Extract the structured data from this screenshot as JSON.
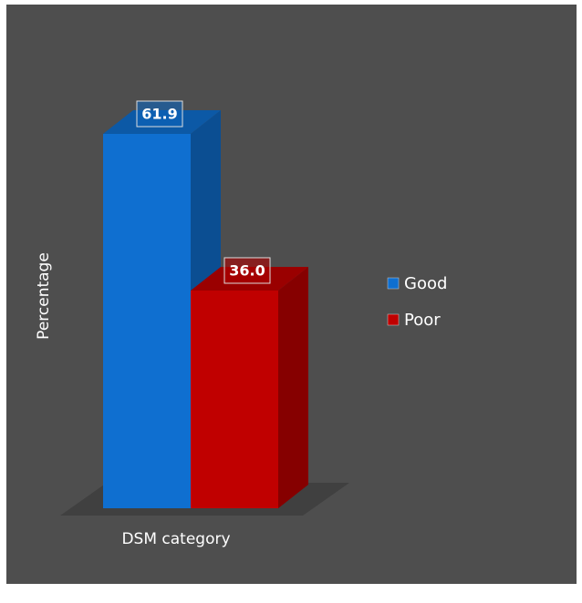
{
  "chart_data": {
    "type": "bar3d",
    "y_label": "Percentage",
    "categories": [
      "DSM category"
    ],
    "series": [
      {
        "name": "Good",
        "color": "#0f6fd0",
        "values": [
          61.9
        ]
      },
      {
        "name": "Poor",
        "color": "#c00000",
        "values": [
          36.0
        ],
        "value_labels": [
          "36.0"
        ]
      }
    ],
    "legend": "right"
  }
}
